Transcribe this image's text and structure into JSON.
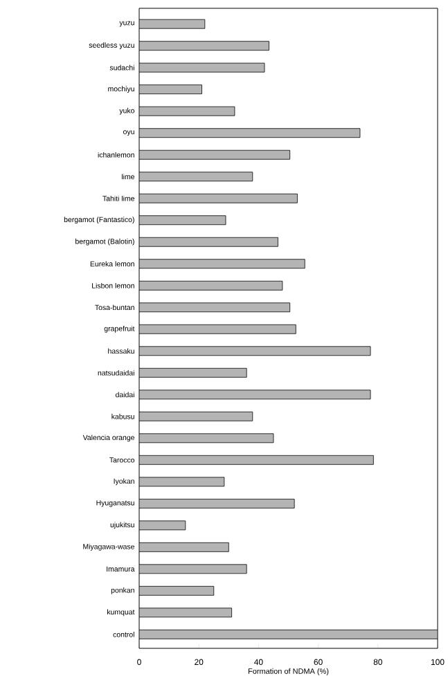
{
  "chart_data": {
    "type": "bar",
    "orientation": "horizontal",
    "xlabel": "Formation of NDMA (%)",
    "categories": [
      "yuzu",
      "seedless yuzu",
      "sudachi",
      "mochiyu",
      "yuko",
      "oyu",
      "ichanlemon",
      "lime",
      "Tahiti lime",
      "bergamot (Fantastico)",
      "bergamot (Balotin)",
      "Eureka lemon",
      "Lisbon lemon",
      "Tosa-buntan",
      "grapefruit",
      "hassaku",
      "natsudaidai",
      "daidai",
      "kabusu",
      "Valencia orange",
      "Tarocco",
      "Iyokan",
      "Hyuganatsu",
      "ujukitsu",
      "Miyagawa-wase",
      "Imamura",
      "ponkan",
      "kumquat",
      "control"
    ],
    "values": [
      22,
      43.5,
      42,
      21,
      32,
      74,
      50.5,
      38,
      53,
      29,
      46.5,
      55.5,
      48,
      50.5,
      52.5,
      77.5,
      36,
      77.5,
      38,
      45,
      78.5,
      28.5,
      52,
      15.5,
      30,
      36,
      25,
      31,
      100
    ],
    "color": "#b4b4b4",
    "xlim": [
      0,
      100
    ],
    "xticks": [
      0,
      20,
      40,
      60,
      80,
      100
    ],
    "grid": false
  }
}
